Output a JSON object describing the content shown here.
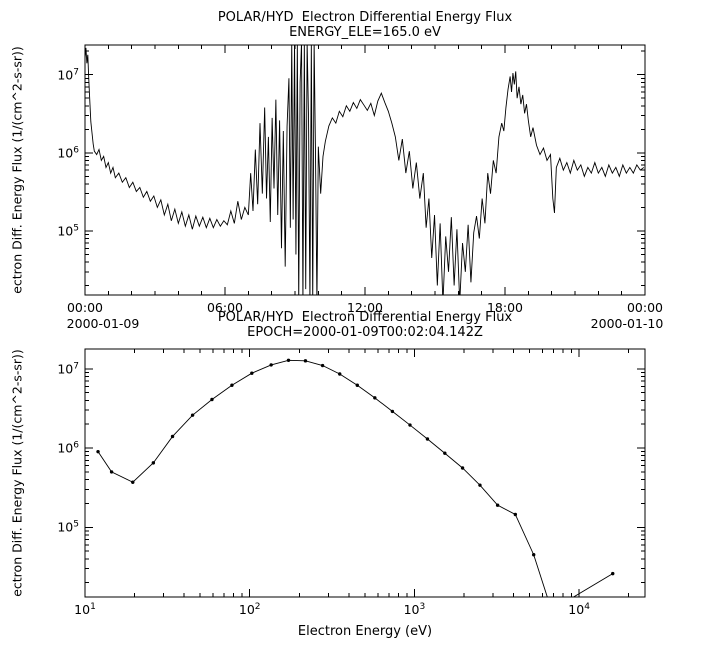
{
  "colors": {
    "line": "#000000",
    "background": "#ffffff"
  },
  "chart_data": [
    {
      "type": "line",
      "title": "POLAR/HYD  Electron Differential Energy Flux",
      "subtitle": "ENERGY_ELE=165.0 eV",
      "xlabel": "",
      "ylabel": "ectron Diff. Energy Flux (1/(cm^2-s-sr))",
      "grid": false,
      "legend": null,
      "x_axis": {
        "kind": "time",
        "range_hours": [
          0,
          24
        ],
        "major_tick_hours": 6,
        "minor_tick_hours": 1,
        "tick_labels": [
          "00:00",
          "06:00",
          "12:00",
          "18:00",
          "00:00"
        ],
        "date_left": "2000-01-09",
        "date_right": "2000-01-10"
      },
      "y_axis": {
        "kind": "log",
        "lim_log10": [
          4.18,
          7.38
        ],
        "decade_exponents": [
          5,
          6,
          7
        ]
      },
      "points_hours_flux": [
        [
          0.0,
          16000000.0
        ],
        [
          0.04,
          22000000.0
        ],
        [
          0.08,
          14000000.0
        ],
        [
          0.12,
          18000000.0
        ],
        [
          0.16,
          9000000.0
        ],
        [
          0.2,
          5000000.0
        ],
        [
          0.25,
          2500000.0
        ],
        [
          0.3,
          1800000.0
        ],
        [
          0.35,
          1300000.0
        ],
        [
          0.4,
          1050000.0
        ],
        [
          0.5,
          950000.0
        ],
        [
          0.6,
          1100000.0
        ],
        [
          0.7,
          800000.0
        ],
        [
          0.8,
          900000.0
        ],
        [
          0.9,
          650000.0
        ],
        [
          1.0,
          750000.0
        ],
        [
          1.1,
          550000.0
        ],
        [
          1.2,
          650000.0
        ],
        [
          1.3,
          480000.0
        ],
        [
          1.45,
          550000.0
        ],
        [
          1.6,
          420000.0
        ],
        [
          1.75,
          480000.0
        ],
        [
          1.9,
          360000.0
        ],
        [
          2.05,
          420000.0
        ],
        [
          2.2,
          320000.0
        ],
        [
          2.35,
          360000.0
        ],
        [
          2.5,
          270000.0
        ],
        [
          2.65,
          320000.0
        ],
        [
          2.8,
          240000.0
        ],
        [
          2.95,
          280000.0
        ],
        [
          3.1,
          200000.0
        ],
        [
          3.25,
          250000.0
        ],
        [
          3.4,
          160000.0
        ],
        [
          3.55,
          220000.0
        ],
        [
          3.7,
          135000.0
        ],
        [
          3.85,
          190000.0
        ],
        [
          4.0,
          125000.0
        ],
        [
          4.15,
          175000.0
        ],
        [
          4.3,
          115000.0
        ],
        [
          4.45,
          160000.0
        ],
        [
          4.6,
          105000.0
        ],
        [
          4.75,
          155000.0
        ],
        [
          4.9,
          115000.0
        ],
        [
          5.05,
          150000.0
        ],
        [
          5.2,
          110000.0
        ],
        [
          5.35,
          145000.0
        ],
        [
          5.5,
          110000.0
        ],
        [
          5.65,
          140000.0
        ],
        [
          5.8,
          115000.0
        ],
        [
          5.95,
          135000.0
        ],
        [
          6.1,
          120000.0
        ],
        [
          6.25,
          180000.0
        ],
        [
          6.4,
          125000.0
        ],
        [
          6.55,
          240000.0
        ],
        [
          6.7,
          140000.0
        ],
        [
          6.85,
          200000.0
        ],
        [
          7.0,
          160000.0
        ],
        [
          7.1,
          550000.0
        ],
        [
          7.2,
          180000.0
        ],
        [
          7.3,
          1100000.0
        ],
        [
          7.4,
          220000.0
        ],
        [
          7.5,
          2400000.0
        ],
        [
          7.6,
          300000.0
        ],
        [
          7.7,
          3800000.0
        ],
        [
          7.78,
          260000.0
        ],
        [
          7.86,
          1600000.0
        ],
        [
          7.94,
          130000.0
        ],
        [
          8.02,
          2800000.0
        ],
        [
          8.1,
          350000.0
        ],
        [
          8.18,
          4800000.0
        ],
        [
          8.26,
          160000.0
        ],
        [
          8.34,
          2600000.0
        ],
        [
          8.42,
          60000.0
        ],
        [
          8.5,
          1900000.0
        ],
        [
          8.58,
          35000.0
        ],
        [
          8.66,
          2200000.0
        ],
        [
          8.74,
          9000000.0
        ],
        [
          8.8,
          110000.0
        ],
        [
          8.86,
          26000000.0
        ],
        [
          8.92,
          140000.0
        ],
        [
          8.98,
          26000000.0
        ],
        [
          9.04,
          50000.0
        ],
        [
          9.1,
          26000000.0
        ],
        [
          9.16,
          12000.0
        ],
        [
          9.22,
          8000000.0
        ],
        [
          9.28,
          26000000.0
        ],
        [
          9.34,
          12000.0
        ],
        [
          9.4,
          26000000.0
        ],
        [
          9.46,
          18000.0
        ],
        [
          9.52,
          26000000.0
        ],
        [
          9.58,
          2800000.0
        ],
        [
          9.64,
          12000.0
        ],
        [
          9.7,
          26000000.0
        ],
        [
          9.76,
          12000.0
        ],
        [
          9.82,
          26000000.0
        ],
        [
          9.88,
          900000.0
        ],
        [
          9.94,
          12000.0
        ],
        [
          10.0,
          1200000.0
        ],
        [
          10.1,
          300000.0
        ],
        [
          10.2,
          900000.0
        ],
        [
          10.3,
          1400000.0
        ],
        [
          10.45,
          2200000.0
        ],
        [
          10.6,
          2800000.0
        ],
        [
          10.75,
          2400000.0
        ],
        [
          10.9,
          3400000.0
        ],
        [
          11.05,
          2900000.0
        ],
        [
          11.2,
          4000000.0
        ],
        [
          11.35,
          3400000.0
        ],
        [
          11.5,
          4400000.0
        ],
        [
          11.65,
          3700000.0
        ],
        [
          11.8,
          4800000.0
        ],
        [
          11.95,
          4100000.0
        ],
        [
          12.1,
          3500000.0
        ],
        [
          12.25,
          4300000.0
        ],
        [
          12.4,
          3000000.0
        ],
        [
          12.55,
          4600000.0
        ],
        [
          12.7,
          5800000.0
        ],
        [
          12.85,
          4400000.0
        ],
        [
          13.0,
          3400000.0
        ],
        [
          13.15,
          2400000.0
        ],
        [
          13.3,
          1600000.0
        ],
        [
          13.45,
          800000.0
        ],
        [
          13.6,
          1500000.0
        ],
        [
          13.75,
          550000.0
        ],
        [
          13.9,
          1050000.0
        ],
        [
          14.05,
          350000.0
        ],
        [
          14.2,
          750000.0
        ],
        [
          14.35,
          260000.0
        ],
        [
          14.5,
          550000.0
        ],
        [
          14.62,
          110000.0
        ],
        [
          14.74,
          260000.0
        ],
        [
          14.86,
          45000.0
        ],
        [
          14.98,
          160000.0
        ],
        [
          15.1,
          20000.0
        ],
        [
          15.22,
          125000.0
        ],
        [
          15.34,
          12000.0
        ],
        [
          15.46,
          85000.0
        ],
        [
          15.58,
          30000.0
        ],
        [
          15.7,
          150000.0
        ],
        [
          15.82,
          20000.0
        ],
        [
          15.94,
          105000.0
        ],
        [
          16.06,
          12000.0
        ],
        [
          16.18,
          70000.0
        ],
        [
          16.3,
          30000.0
        ],
        [
          16.42,
          120000.0
        ],
        [
          16.54,
          22000.0
        ],
        [
          16.66,
          95000.0
        ],
        [
          16.78,
          155000.0
        ],
        [
          16.9,
          80000.0
        ],
        [
          17.02,
          260000.0
        ],
        [
          17.14,
          125000.0
        ],
        [
          17.26,
          550000.0
        ],
        [
          17.38,
          300000.0
        ],
        [
          17.5,
          800000.0
        ],
        [
          17.62,
          550000.0
        ],
        [
          17.74,
          1600000.0
        ],
        [
          17.86,
          2400000.0
        ],
        [
          17.95,
          1900000.0
        ],
        [
          18.04,
          3800000.0
        ],
        [
          18.13,
          6500000.0
        ],
        [
          18.22,
          9500000.0
        ],
        [
          18.28,
          6000000.0
        ],
        [
          18.34,
          10500000.0
        ],
        [
          18.4,
          7500000.0
        ],
        [
          18.46,
          11000000.0
        ],
        [
          18.52,
          5000000.0
        ],
        [
          18.6,
          7000000.0
        ],
        [
          18.68,
          4200000.0
        ],
        [
          18.76,
          5500000.0
        ],
        [
          18.84,
          3200000.0
        ],
        [
          18.92,
          4200000.0
        ],
        [
          19.0,
          2600000.0
        ],
        [
          19.1,
          1600000.0
        ],
        [
          19.2,
          2100000.0
        ],
        [
          19.35,
          1250000.0
        ],
        [
          19.5,
          950000.0
        ],
        [
          19.65,
          1150000.0
        ],
        [
          19.8,
          800000.0
        ],
        [
          19.95,
          950000.0
        ],
        [
          20.05,
          260000.0
        ],
        [
          20.12,
          170000.0
        ],
        [
          20.2,
          650000.0
        ],
        [
          20.35,
          850000.0
        ],
        [
          20.5,
          600000.0
        ],
        [
          20.65,
          750000.0
        ],
        [
          20.8,
          550000.0
        ],
        [
          20.95,
          800000.0
        ],
        [
          21.1,
          600000.0
        ],
        [
          21.25,
          700000.0
        ],
        [
          21.4,
          500000.0
        ],
        [
          21.55,
          650000.0
        ],
        [
          21.7,
          550000.0
        ],
        [
          21.85,
          750000.0
        ],
        [
          22.0,
          550000.0
        ],
        [
          22.15,
          650000.0
        ],
        [
          22.3,
          500000.0
        ],
        [
          22.45,
          700000.0
        ],
        [
          22.6,
          550000.0
        ],
        [
          22.75,
          650000.0
        ],
        [
          22.9,
          500000.0
        ],
        [
          23.05,
          700000.0
        ],
        [
          23.2,
          550000.0
        ],
        [
          23.35,
          650000.0
        ],
        [
          23.5,
          550000.0
        ],
        [
          23.65,
          700000.0
        ],
        [
          23.8,
          600000.0
        ],
        [
          23.95,
          650000.0
        ]
      ]
    },
    {
      "type": "scatter-line",
      "title": "POLAR/HYD  Electron Differential Energy Flux",
      "subtitle": "EPOCH=2000-01-09T00:02:04.142Z",
      "xlabel": "Electron Energy (eV)",
      "ylabel": "ectron Diff. Energy Flux (1/(cm^2-s-sr))",
      "grid": false,
      "legend": null,
      "marker": "dot",
      "x_axis": {
        "kind": "log",
        "lim_log10": [
          1,
          4.4
        ],
        "decade_exponents": [
          1,
          2,
          3,
          4
        ]
      },
      "y_axis": {
        "kind": "log",
        "lim_log10": [
          4.12,
          7.25
        ],
        "decade_exponents": [
          5,
          6,
          7
        ]
      },
      "points_energy_eV_flux": [
        [
          12,
          900000.0
        ],
        [
          14.5,
          500000.0
        ],
        [
          19.5,
          370000.0
        ],
        [
          26,
          650000.0
        ],
        [
          34,
          1400000.0
        ],
        [
          45,
          2600000.0
        ],
        [
          59,
          4100000.0
        ],
        [
          78,
          6200000.0
        ],
        [
          103,
          8800000.0
        ],
        [
          135,
          11200000.0
        ],
        [
          172,
          12800000.0
        ],
        [
          218,
          12600000.0
        ],
        [
          277,
          11000000.0
        ],
        [
          352,
          8600000.0
        ],
        [
          450,
          6200000.0
        ],
        [
          575,
          4300000.0
        ],
        [
          735,
          2900000.0
        ],
        [
          940,
          1950000.0
        ],
        [
          1200,
          1300000.0
        ],
        [
          1530,
          860000.0
        ],
        [
          1960,
          560000.0
        ],
        [
          2500,
          340000.0
        ],
        [
          3200,
          190000.0
        ],
        [
          4100,
          145000.0
        ],
        [
          5300,
          45000.0
        ],
        [
          6800,
          9000.0
        ],
        [
          16000,
          26000.0
        ]
      ]
    }
  ]
}
